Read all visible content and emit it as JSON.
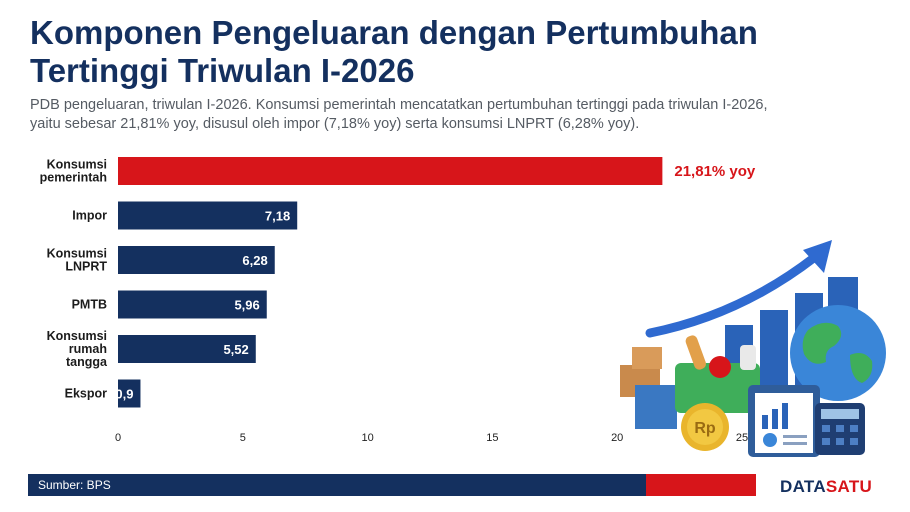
{
  "title": "Komponen Pengeluaran dengan Pertumbuhan Tertinggi Triwulan I-2026",
  "subtitle": "PDB pengeluaran, triwulan I-2026. Konsumsi pemerintah mencatatkan pertumbuhan tertinggi pada triwulan I-2026, yaitu sebesar 21,81% yoy, disusul oleh impor (7,18% yoy) serta konsumsi LNPRT (6,28% yoy).",
  "source": "Sumber: BPS",
  "brand": {
    "part1": "DATA",
    "part2": "SATU"
  },
  "colors": {
    "highlight": "#d7151a",
    "bar": "#14305f",
    "title": "#14305f"
  },
  "illustration": [
    "upward-arrow-icon",
    "bar-chart-icon",
    "globe-icon",
    "shopping-basket-icon",
    "rupiah-coin-icon",
    "clipboard-icon",
    "calculator-icon",
    "boxes-icon"
  ],
  "chart_data": {
    "type": "bar",
    "orientation": "horizontal",
    "categories": [
      [
        "Konsumsi",
        "pemerintah"
      ],
      [
        "Impor"
      ],
      [
        "Konsumsi",
        "LNPRT"
      ],
      [
        "PMTB"
      ],
      [
        "Konsumsi",
        "rumah",
        "tangga"
      ],
      [
        "Ekspor"
      ]
    ],
    "values": [
      21.81,
      7.18,
      6.28,
      5.96,
      5.52,
      0.9
    ],
    "value_labels": [
      "21,81% yoy",
      "7,18",
      "6,28",
      "5,96",
      "5,52",
      "0,9"
    ],
    "highlight_index": 0,
    "xlim": [
      0,
      25
    ],
    "xticks": [
      0,
      5,
      10,
      15,
      20,
      25
    ],
    "grid": false
  }
}
